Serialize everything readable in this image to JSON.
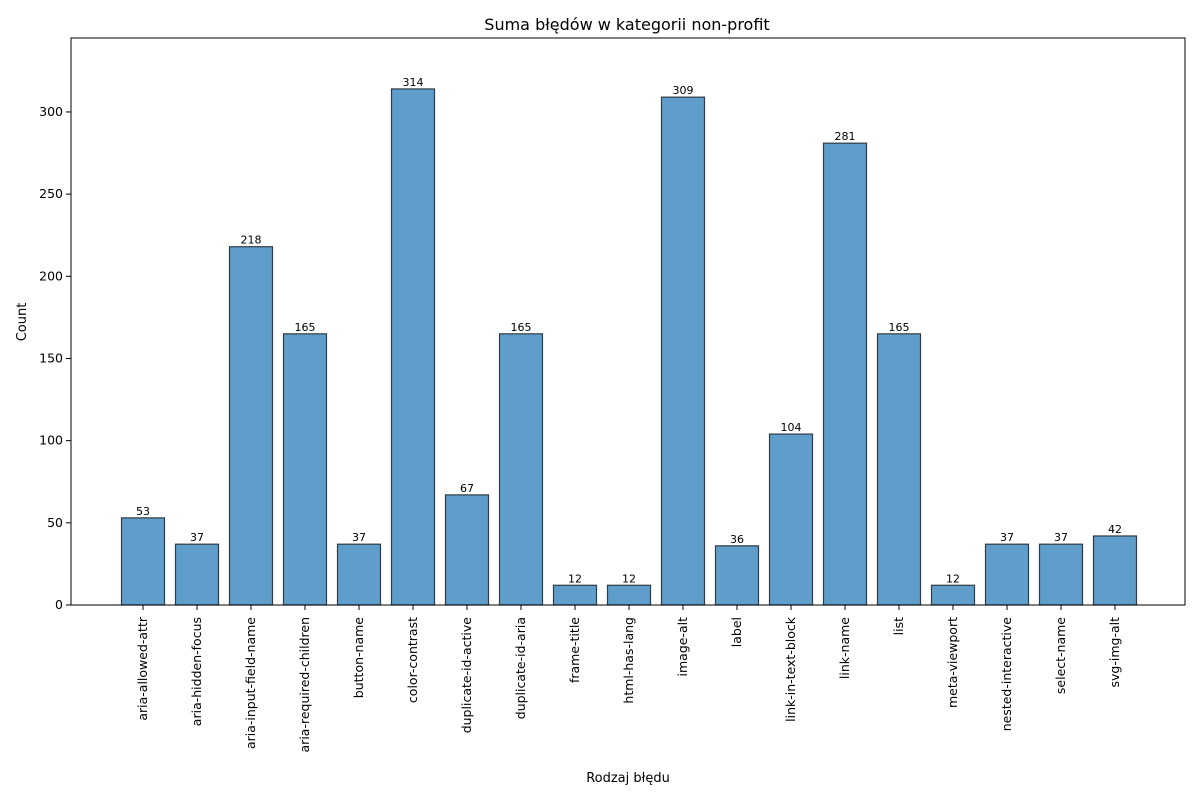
{
  "chart_data": {
    "type": "bar",
    "title": "Suma błędów w kategorii non-profit",
    "xlabel": "Rodzaj błędu",
    "ylabel": "Count",
    "categories": [
      "aria-allowed-attr",
      "aria-hidden-focus",
      "aria-input-field-name",
      "aria-required-children",
      "button-name",
      "color-contrast",
      "duplicate-id-active",
      "duplicate-id-aria",
      "frame-title",
      "html-has-lang",
      "image-alt",
      "label",
      "link-in-text-block",
      "link-name",
      "list",
      "meta-viewport",
      "nested-interactive",
      "select-name",
      "svg-img-alt"
    ],
    "values": [
      53,
      37,
      218,
      165,
      37,
      314,
      67,
      165,
      12,
      12,
      309,
      36,
      104,
      281,
      165,
      12,
      37,
      37,
      42
    ],
    "ylim": [
      0,
      345
    ],
    "yticks": [
      0,
      50,
      100,
      150,
      200,
      250,
      300
    ],
    "grid": false,
    "bar_color": "#5f9ecb",
    "edge_color": "#2f3b45"
  }
}
